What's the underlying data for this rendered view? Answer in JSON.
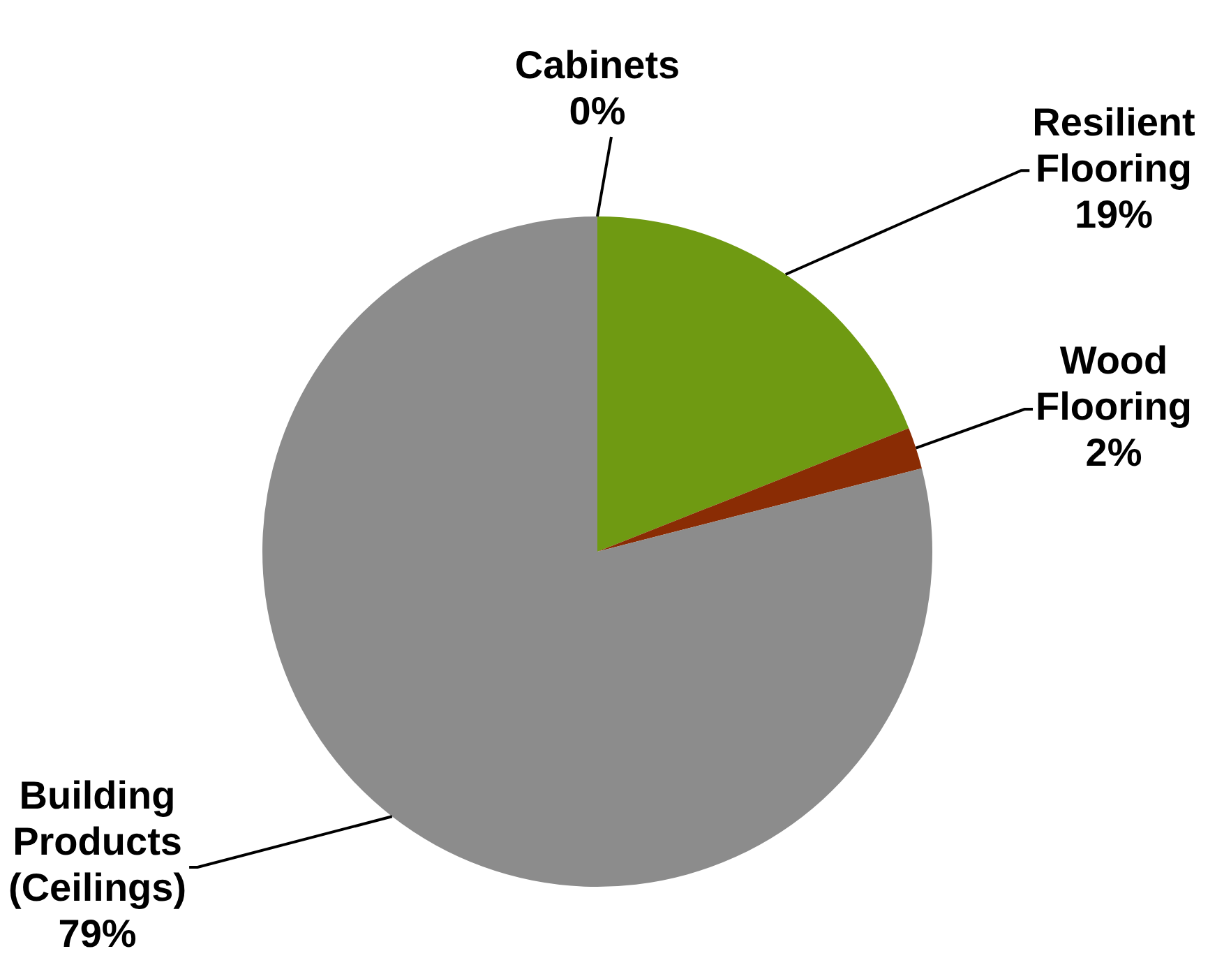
{
  "chart_data": {
    "type": "pie",
    "categories": [
      "Cabinets",
      "Resilient Flooring",
      "Wood Flooring",
      "Building Products (Ceilings)"
    ],
    "values": [
      0,
      19,
      2,
      79
    ],
    "value_labels": [
      "0%",
      "19%",
      "2%",
      "79%"
    ],
    "colors": [
      "#3a3a3a",
      "#6f9a12",
      "#8a2c04",
      "#8c8c8c"
    ],
    "legend": false
  }
}
